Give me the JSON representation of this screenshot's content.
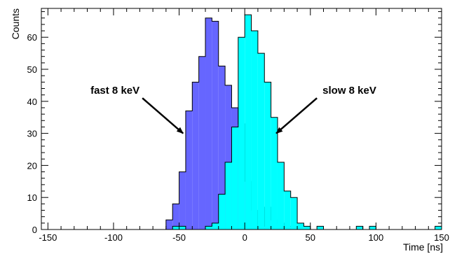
{
  "chart_data": {
    "type": "bar",
    "title": "",
    "xlabel": "Time [ns]",
    "ylabel": "Counts",
    "xlim": [
      -155,
      150
    ],
    "ylim": [
      0,
      69
    ],
    "bin_width": 5,
    "x_ticks": [
      -150,
      -100,
      -50,
      0,
      50,
      100,
      150
    ],
    "y_ticks": [
      0,
      10,
      20,
      30,
      40,
      50,
      60
    ],
    "grid": false,
    "series": [
      {
        "name": "fast 8 keV",
        "color": "#6666ff",
        "bins": [
          {
            "x": -60,
            "y": 3
          },
          {
            "x": -55,
            "y": 8
          },
          {
            "x": -50,
            "y": 18
          },
          {
            "x": -45,
            "y": 37
          },
          {
            "x": -40,
            "y": 46
          },
          {
            "x": -35,
            "y": 54
          },
          {
            "x": -30,
            "y": 66
          },
          {
            "x": -25,
            "y": 65
          },
          {
            "x": -20,
            "y": 51
          },
          {
            "x": -15,
            "y": 45
          },
          {
            "x": -10,
            "y": 38
          },
          {
            "x": -5,
            "y": 33
          },
          {
            "x": 0,
            "y": 15
          },
          {
            "x": 5,
            "y": 6
          },
          {
            "x": 10,
            "y": 1
          },
          {
            "x": 15,
            "y": 7
          },
          {
            "x": 20,
            "y": 3
          },
          {
            "x": 25,
            "y": 2
          },
          {
            "x": 30,
            "y": 1
          },
          {
            "x": 35,
            "y": 1
          }
        ]
      },
      {
        "name": "slow 8 keV",
        "color": "#00ffff",
        "bins": [
          {
            "x": -55,
            "y": 1
          },
          {
            "x": -50,
            "y": 1
          },
          {
            "x": -30,
            "y": 1
          },
          {
            "x": -25,
            "y": 2
          },
          {
            "x": -20,
            "y": 11
          },
          {
            "x": -15,
            "y": 21
          },
          {
            "x": -10,
            "y": 32
          },
          {
            "x": -5,
            "y": 60
          },
          {
            "x": 0,
            "y": 67
          },
          {
            "x": 5,
            "y": 62
          },
          {
            "x": 10,
            "y": 55
          },
          {
            "x": 15,
            "y": 46
          },
          {
            "x": 20,
            "y": 35
          },
          {
            "x": 25,
            "y": 21
          },
          {
            "x": 30,
            "y": 12
          },
          {
            "x": 35,
            "y": 10
          },
          {
            "x": 40,
            "y": 2
          },
          {
            "x": 45,
            "y": 1
          },
          {
            "x": 55,
            "y": 1
          },
          {
            "x": 85,
            "y": 1
          },
          {
            "x": 95,
            "y": 1
          },
          {
            "x": 145,
            "y": 1
          }
        ]
      }
    ],
    "annotations": [
      {
        "text": "fast 8 keV",
        "arrow_from": [
          -78,
          41
        ],
        "arrow_to": [
          -47,
          30
        ]
      },
      {
        "text": "slow 8 keV",
        "arrow_from": [
          55,
          41
        ],
        "arrow_to": [
          24,
          30
        ]
      }
    ]
  }
}
